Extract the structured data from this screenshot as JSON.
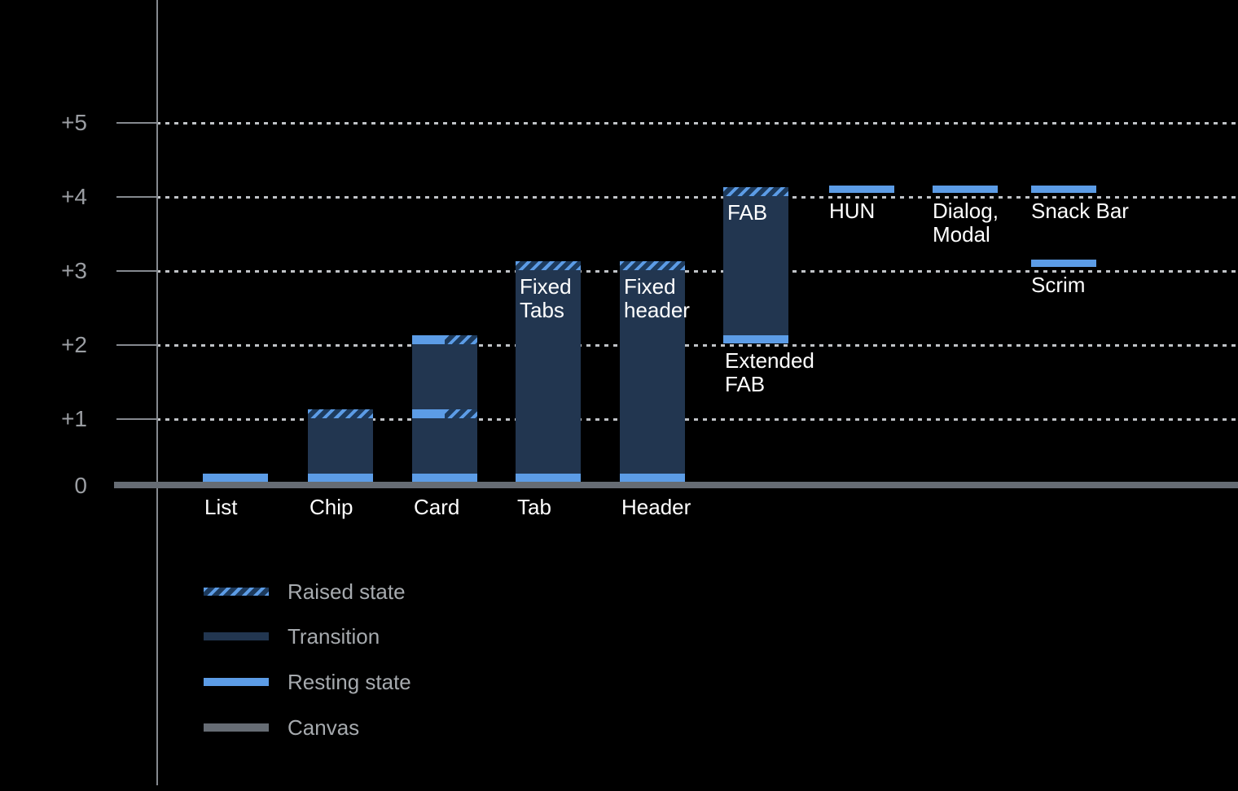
{
  "colors": {
    "background": "#000000",
    "resting": "#5C9CE6",
    "transition": "#223650",
    "hatch_bg": "#1D3A5C",
    "canvas": "#666C74",
    "axis_line": "#85898F",
    "grid_dot": "#C0C3C7",
    "axis_text": "#9B9EA3",
    "legend_text": "#A6AAAE",
    "bar_text": "#FFFFFF"
  },
  "chart_data": {
    "type": "bar",
    "title": "",
    "xlabel": "",
    "ylabel": "",
    "ylim": [
      0,
      5
    ],
    "grid": "dotted horizontal lines at +1..+5",
    "y_axis_labels": [
      {
        "text": "+5",
        "elevation": 5
      },
      {
        "text": "+4",
        "elevation": 4
      },
      {
        "text": "+3",
        "elevation": 3
      },
      {
        "text": "+2",
        "elevation": 2
      },
      {
        "text": "+1",
        "elevation": 1
      },
      {
        "text": "0",
        "elevation": 0
      }
    ],
    "categories": [
      "List",
      "Chip",
      "Card",
      "Tab",
      "Header",
      "FAB",
      "HUN",
      "Dialog, Modal",
      "Snack Bar",
      "Scrim"
    ],
    "components": [
      {
        "name": "list",
        "axis_label": "List",
        "segments": [
          {
            "kind": "resting",
            "at": 0
          }
        ]
      },
      {
        "name": "chip",
        "axis_label": "Chip",
        "segments": [
          {
            "kind": "transition",
            "from": 0,
            "to": 1
          },
          {
            "kind": "resting",
            "at": 0
          },
          {
            "kind": "raised",
            "at": 1
          }
        ]
      },
      {
        "name": "card",
        "axis_label": "Card",
        "segments": [
          {
            "kind": "transition",
            "from": 0,
            "to": 2
          },
          {
            "kind": "resting",
            "at": 0
          },
          {
            "kind": "split",
            "at": 1
          },
          {
            "kind": "split",
            "at": 2
          }
        ]
      },
      {
        "name": "tab",
        "axis_label": "Tab",
        "inner_label": [
          "Fixed",
          "Tabs"
        ],
        "segments": [
          {
            "kind": "transition",
            "from": 0,
            "to": 3
          },
          {
            "kind": "resting",
            "at": 0
          },
          {
            "kind": "raised",
            "at": 3
          }
        ]
      },
      {
        "name": "header",
        "axis_label": "Header",
        "inner_label": [
          "Fixed",
          "header"
        ],
        "segments": [
          {
            "kind": "transition",
            "from": 0,
            "to": 3
          },
          {
            "kind": "resting",
            "at": 0
          },
          {
            "kind": "raised",
            "at": 3
          }
        ]
      },
      {
        "name": "fab",
        "inner_label": [
          "FAB"
        ],
        "below_label": [
          "Extended",
          "FAB"
        ],
        "segments": [
          {
            "kind": "transition",
            "from": 2,
            "to": 4
          },
          {
            "kind": "resting",
            "at": 2,
            "base": true
          },
          {
            "kind": "raised",
            "at": 4
          }
        ]
      },
      {
        "name": "hun",
        "under_label": [
          "HUN"
        ],
        "segments": [
          {
            "kind": "resting",
            "at": 4,
            "float": true
          }
        ]
      },
      {
        "name": "dialog-modal",
        "under_label": [
          "Dialog,",
          "Modal"
        ],
        "segments": [
          {
            "kind": "resting",
            "at": 4,
            "float": true
          }
        ]
      },
      {
        "name": "snack-bar",
        "under_label": [
          "Snack Bar"
        ],
        "segments": [
          {
            "kind": "resting",
            "at": 4,
            "float": true
          }
        ]
      },
      {
        "name": "scrim",
        "under_label": [
          "Scrim"
        ],
        "segments": [
          {
            "kind": "resting",
            "at": 3,
            "float": true
          }
        ]
      }
    ]
  },
  "legend": {
    "items": [
      {
        "label": "Raised state",
        "swatch": "raised"
      },
      {
        "label": "Transition",
        "swatch": "transition"
      },
      {
        "label": "Resting state",
        "swatch": "resting"
      },
      {
        "label": "Canvas",
        "swatch": "canvas"
      }
    ]
  }
}
